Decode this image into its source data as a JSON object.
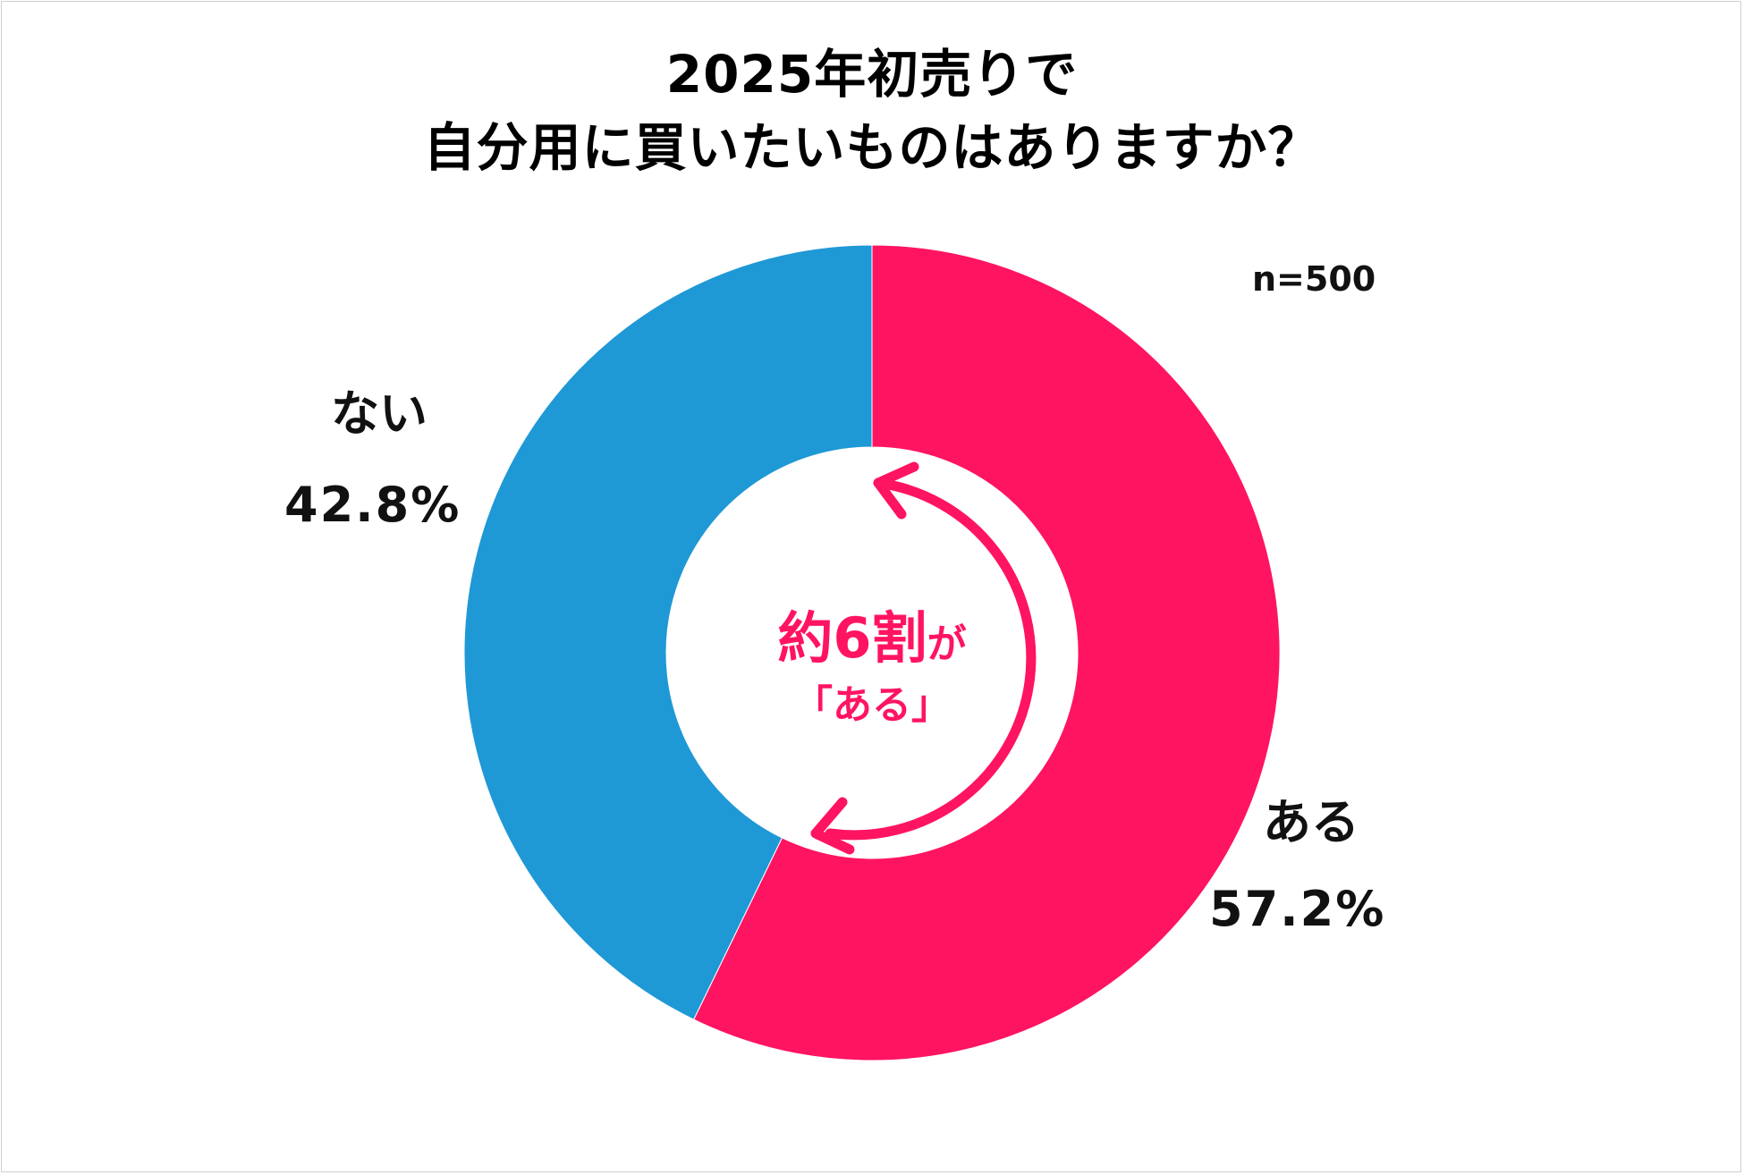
{
  "chart_data": {
    "type": "pie",
    "donut": true,
    "title_line1": "2025年初売りで",
    "title_line2": "自分用に買いたいものはありますか？",
    "sample_size": "n=500",
    "slices": [
      {
        "label": "ある",
        "value": 57.2,
        "display": "57.2%",
        "color": "#ff1461"
      },
      {
        "label": "ない",
        "value": 42.8,
        "display": "42.8%",
        "color": "#1f98d6"
      }
    ],
    "center_annotation": {
      "main": "約6割",
      "particle": "が",
      "sub": "「ある」",
      "color": "#ff1461"
    },
    "start_angle": "top",
    "direction": "clockwise"
  }
}
